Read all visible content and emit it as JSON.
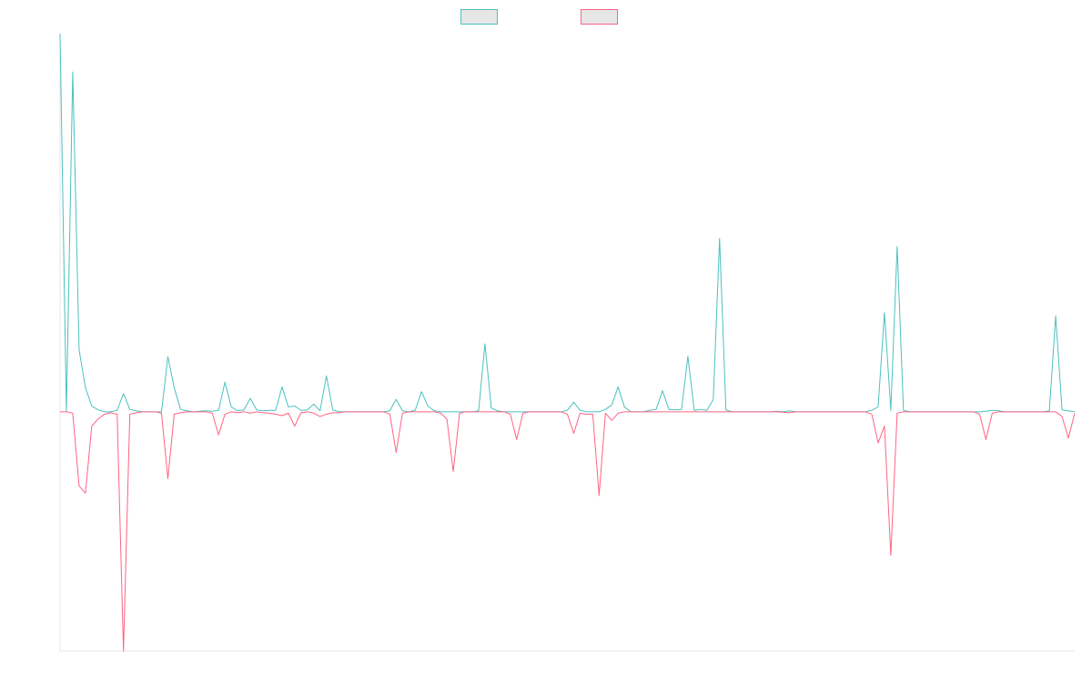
{
  "chart_data": {
    "type": "line",
    "title": "",
    "xlabel": "",
    "ylabel": "",
    "grid": false,
    "legend_placement": "top-center",
    "ylim": [
      -500,
      790
    ],
    "x_count": 161,
    "series": [
      {
        "name": "",
        "color": "#4bc0c0",
        "fill": "#e6e6e6",
        "spikes": [
          [
            0,
            790
          ],
          [
            2,
            710
          ],
          [
            3,
            130
          ],
          [
            4,
            50
          ],
          [
            5,
            12
          ],
          [
            6,
            4
          ],
          [
            9,
            3
          ],
          [
            10,
            38
          ],
          [
            11,
            5
          ],
          [
            12,
            2
          ],
          [
            17,
            115
          ],
          [
            18,
            50
          ],
          [
            19,
            5
          ],
          [
            20,
            2
          ],
          [
            22,
            1
          ],
          [
            23,
            2
          ],
          [
            24,
            1
          ],
          [
            25,
            3
          ],
          [
            26,
            62
          ],
          [
            27,
            10
          ],
          [
            28,
            2
          ],
          [
            29,
            4
          ],
          [
            30,
            28
          ],
          [
            31,
            4
          ],
          [
            32,
            2
          ],
          [
            33,
            3
          ],
          [
            34,
            3
          ],
          [
            35,
            52
          ],
          [
            36,
            10
          ],
          [
            37,
            12
          ],
          [
            38,
            3
          ],
          [
            39,
            4
          ],
          [
            40,
            16
          ],
          [
            41,
            2
          ],
          [
            42,
            75
          ],
          [
            43,
            4
          ],
          [
            52,
            2
          ],
          [
            53,
            26
          ],
          [
            54,
            2
          ],
          [
            56,
            3
          ],
          [
            57,
            42
          ],
          [
            58,
            12
          ],
          [
            59,
            2
          ],
          [
            66,
            2
          ],
          [
            67,
            142
          ],
          [
            68,
            8
          ],
          [
            69,
            2
          ],
          [
            80,
            3
          ],
          [
            81,
            20
          ],
          [
            82,
            3
          ],
          [
            86,
            5
          ],
          [
            87,
            14
          ],
          [
            88,
            52
          ],
          [
            89,
            10
          ],
          [
            93,
            3
          ],
          [
            94,
            5
          ],
          [
            95,
            44
          ],
          [
            96,
            5
          ],
          [
            97,
            4
          ],
          [
            98,
            5
          ],
          [
            99,
            116
          ],
          [
            100,
            3
          ],
          [
            101,
            5
          ],
          [
            102,
            3
          ],
          [
            103,
            25
          ],
          [
            104,
            362
          ],
          [
            105,
            4
          ],
          [
            113,
            1
          ],
          [
            115,
            2
          ],
          [
            128,
            3
          ],
          [
            129,
            10
          ],
          [
            130,
            207
          ],
          [
            131,
            3
          ],
          [
            132,
            345
          ],
          [
            133,
            3
          ],
          [
            146,
            1
          ],
          [
            147,
            3
          ],
          [
            148,
            2
          ],
          [
            156,
            2
          ],
          [
            157,
            200
          ],
          [
            158,
            4
          ],
          [
            159,
            2
          ]
        ]
      },
      {
        "name": "",
        "color": "#ff6384",
        "fill": "#e6e6e6",
        "spikes": [
          [
            2,
            -3
          ],
          [
            3,
            -155
          ],
          [
            4,
            -170
          ],
          [
            5,
            -30
          ],
          [
            6,
            -15
          ],
          [
            7,
            -5
          ],
          [
            8,
            -2
          ],
          [
            9,
            -5
          ],
          [
            10,
            -500
          ],
          [
            11,
            -5
          ],
          [
            12,
            -2
          ],
          [
            16,
            -3
          ],
          [
            17,
            -140
          ],
          [
            18,
            -5
          ],
          [
            19,
            -2
          ],
          [
            24,
            -3
          ],
          [
            25,
            -48
          ],
          [
            26,
            -5
          ],
          [
            28,
            -2
          ],
          [
            30,
            -3
          ],
          [
            32,
            -2
          ],
          [
            33,
            -3
          ],
          [
            34,
            -5
          ],
          [
            35,
            -8
          ],
          [
            36,
            -3
          ],
          [
            37,
            -30
          ],
          [
            38,
            -2
          ],
          [
            40,
            -3
          ],
          [
            41,
            -10
          ],
          [
            42,
            -5
          ],
          [
            43,
            -2
          ],
          [
            44,
            -2
          ],
          [
            52,
            -5
          ],
          [
            53,
            -85
          ],
          [
            54,
            -3
          ],
          [
            60,
            -3
          ],
          [
            61,
            -15
          ],
          [
            62,
            -125
          ],
          [
            63,
            -3
          ],
          [
            71,
            -5
          ],
          [
            72,
            -58
          ],
          [
            73,
            -3
          ],
          [
            80,
            -5
          ],
          [
            81,
            -45
          ],
          [
            82,
            -3
          ],
          [
            83,
            -5
          ],
          [
            84,
            -5
          ],
          [
            85,
            -175
          ],
          [
            86,
            -3
          ],
          [
            87,
            -18
          ],
          [
            88,
            -3
          ],
          [
            114,
            -1
          ],
          [
            115,
            -2
          ],
          [
            128,
            -5
          ],
          [
            129,
            -65
          ],
          [
            130,
            -30
          ],
          [
            131,
            -300
          ],
          [
            132,
            -3
          ],
          [
            145,
            -5
          ],
          [
            146,
            -58
          ],
          [
            147,
            -3
          ],
          [
            158,
            -10
          ],
          [
            159,
            -55
          ],
          [
            160,
            -3
          ]
        ]
      }
    ]
  }
}
